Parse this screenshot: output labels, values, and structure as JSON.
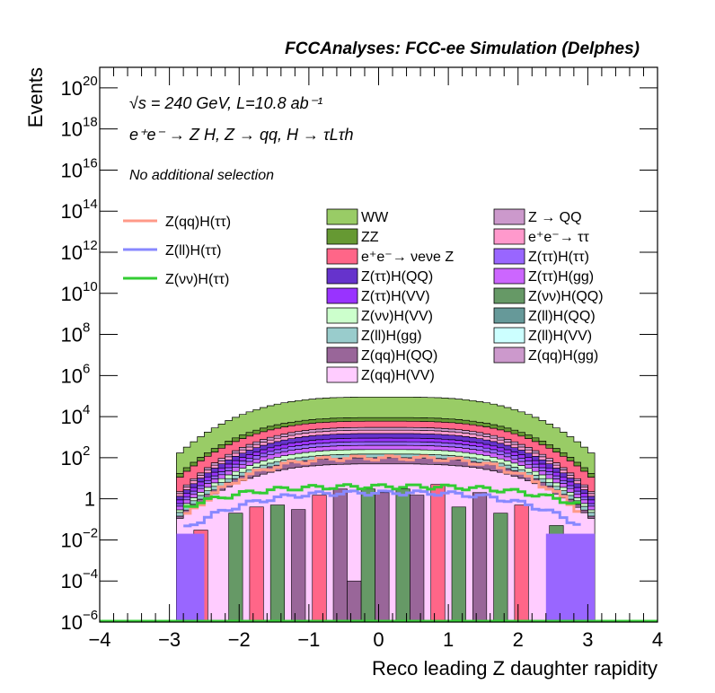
{
  "chart_data": {
    "type": "area",
    "title": "FCCAnalyses: FCC-ee Simulation (Delphes)",
    "xlabel": "Reco leading Z daughter rapidity",
    "ylabel": "Events",
    "xlim": [
      -4,
      4
    ],
    "ylim": [
      1e-06,
      1e+21
    ],
    "log_y": true,
    "x_ticks": [
      "−4",
      "−3",
      "−2",
      "−1",
      "0",
      "1",
      "2",
      "3",
      "4"
    ],
    "y_ticks": [
      {
        "base": "10",
        "exp": "−6",
        "value": 1e-06
      },
      {
        "base": "10",
        "exp": "−4",
        "value": 0.0001
      },
      {
        "base": "10",
        "exp": "−2",
        "value": 0.01
      },
      {
        "base": "1",
        "exp": "",
        "value": 1
      },
      {
        "base": "10",
        "exp": "2",
        "value": 100.0
      },
      {
        "base": "10",
        "exp": "4",
        "value": 10000.0
      },
      {
        "base": "10",
        "exp": "6",
        "value": 1000000.0
      },
      {
        "base": "10",
        "exp": "8",
        "value": 100000000.0
      },
      {
        "base": "10",
        "exp": "10",
        "value": 10000000000.0
      },
      {
        "base": "10",
        "exp": "12",
        "value": 1000000000000.0
      },
      {
        "base": "10",
        "exp": "14",
        "value": 100000000000000.0
      },
      {
        "base": "10",
        "exp": "16",
        "value": 1e+16
      },
      {
        "base": "10",
        "exp": "18",
        "value": 1e+18
      },
      {
        "base": "10",
        "exp": "20",
        "value": 1e+20
      }
    ],
    "annotations": {
      "energy": "√s = 240 GeV, L=10.8 ab⁻¹",
      "process": "e⁺e⁻ → Z H, Z → qq, H → τLτh",
      "selection": "No additional selection"
    },
    "x_range_filled": [
      -2.9,
      3.1
    ],
    "stack_levels": [
      {
        "name": "WW",
        "color": "#99cc66",
        "center": 90000,
        "edge": 120
      },
      {
        "name": "ZZ",
        "color": "#669933",
        "center": 9000,
        "edge": 12
      },
      {
        "name": "e⁺e⁻→ νeνe Z",
        "color": "#ff6688",
        "center": 6000,
        "edge": 8
      },
      {
        "name": "Z → QQ",
        "color": "#cc99cc",
        "center": 3000,
        "edge": 1.5
      },
      {
        "name": "e⁺e⁻→ ττ",
        "color": "#ff99cc",
        "center": 2200,
        "edge": 1.2
      },
      {
        "name": "Z(ττ)H(QQ)",
        "color": "#6633cc",
        "center": 1500,
        "edge": 0.9
      },
      {
        "name": "Z(ττ)H(VV)",
        "color": "#9933ff",
        "center": 900,
        "edge": 0.6
      },
      {
        "name": "Z(ττ)H(ττ)",
        "color": "#9966ff",
        "center": 600,
        "edge": 0.4
      },
      {
        "name": "Z(ττ)H(gg)",
        "color": "#cc66ff",
        "center": 400,
        "edge": 0.3
      },
      {
        "name": "Z(νν)H(VV)",
        "color": "#ccffcc",
        "center": 250,
        "edge": 0.2
      },
      {
        "name": "Z(ll)H(gg)",
        "color": "#99cccc",
        "center": 150,
        "edge": 0.15
      },
      {
        "name": "Z(qq)H(QQ)",
        "color": "#996699",
        "center": 100,
        "edge": 0.1
      },
      {
        "name": "Z(qq)H(VV)",
        "color": "#ffccff",
        "center": 50,
        "edge": 0.08
      }
    ],
    "lines": [
      {
        "name": "Z(qq)H(ττ)",
        "color": "#ff9988",
        "center": 100,
        "edge": 0.05
      },
      {
        "name": "Z(ll)H(ττ)",
        "color": "#8888ff",
        "center": 2,
        "edge": 0.02
      },
      {
        "name": "Z(νν)H(ττ)",
        "color": "#33cc33",
        "center": 4,
        "edge": 0.3
      }
    ],
    "legend_lines": [
      {
        "label": "Z(qq)H(ττ)",
        "color": "#ff9988"
      },
      {
        "label": "Z(ll)H(ττ)",
        "color": "#8888ff"
      },
      {
        "label": "Z(νν)H(ττ)",
        "color": "#33cc33"
      }
    ],
    "legend_col1": [
      {
        "label": "WW",
        "color": "#99cc66"
      },
      {
        "label": "ZZ",
        "color": "#669933"
      },
      {
        "label": "e⁺e⁻→ νeνe Z",
        "color": "#ff6688"
      },
      {
        "label": "Z(ττ)H(QQ)",
        "color": "#6633cc"
      },
      {
        "label": "Z(ττ)H(VV)",
        "color": "#9933ff"
      },
      {
        "label": "Z(νν)H(VV)",
        "color": "#ccffcc"
      },
      {
        "label": "Z(ll)H(gg)",
        "color": "#99cccc"
      },
      {
        "label": "Z(qq)H(QQ)",
        "color": "#996699"
      },
      {
        "label": "Z(qq)H(VV)",
        "color": "#ffccff"
      }
    ],
    "legend_col2": [
      {
        "label": "Z → QQ",
        "color": "#cc99cc"
      },
      {
        "label": "e⁺e⁻→ ττ",
        "color": "#ff99cc"
      },
      {
        "label": "Z(ττ)H(ττ)",
        "color": "#9966ff"
      },
      {
        "label": "Z(ττ)H(gg)",
        "color": "#cc66ff"
      },
      {
        "label": "Z(νν)H(QQ)",
        "color": "#669966"
      },
      {
        "label": "Z(ll)H(QQ)",
        "color": "#669999"
      },
      {
        "label": "Z(ll)H(VV)",
        "color": "#ccffff"
      },
      {
        "label": "Z(qq)H(gg)",
        "color": "#cc99cc"
      }
    ],
    "bottom_bins": [
      {
        "x": -2.55,
        "value": 0.03,
        "color": "#ff6688"
      },
      {
        "x": -2.05,
        "value": 0.2,
        "color": "#669966"
      },
      {
        "x": -1.75,
        "value": 0.4,
        "color": "#ff6688"
      },
      {
        "x": -1.45,
        "value": 0.5,
        "color": "#669966"
      },
      {
        "x": -1.15,
        "value": 0.3,
        "color": "#996699"
      },
      {
        "x": -0.85,
        "value": 1.5,
        "color": "#ff6688"
      },
      {
        "x": -0.55,
        "value": 3,
        "color": "#996699"
      },
      {
        "x": -0.35,
        "value": 0.0001,
        "color": "#996699"
      },
      {
        "x": -0.15,
        "value": 3,
        "color": "#669966"
      },
      {
        "x": 0.05,
        "value": 2,
        "color": "#996699"
      },
      {
        "x": 0.35,
        "value": 3,
        "color": "#669966"
      },
      {
        "x": 0.55,
        "value": 1.5,
        "color": "#996699"
      },
      {
        "x": 0.85,
        "value": 5,
        "color": "#ff6688"
      },
      {
        "x": 1.15,
        "value": 0.4,
        "color": "#669966"
      },
      {
        "x": 1.45,
        "value": 2,
        "color": "#996699"
      },
      {
        "x": 1.75,
        "value": 0.2,
        "color": "#669966"
      },
      {
        "x": 2.05,
        "value": 0.5,
        "color": "#ff6688"
      },
      {
        "x": 2.55,
        "value": 0.05,
        "color": "#669966"
      }
    ]
  }
}
